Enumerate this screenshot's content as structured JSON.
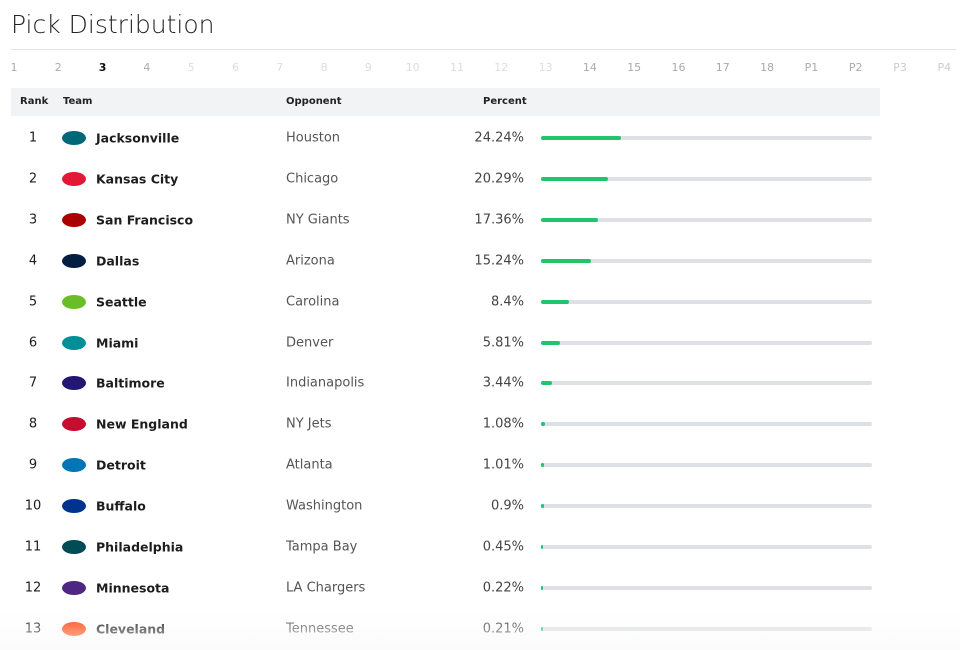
{
  "header": {
    "title": "Pick Distribution"
  },
  "tabs": [
    {
      "label": "1"
    },
    {
      "label": "2"
    },
    {
      "label": "3",
      "active": true
    },
    {
      "label": "4"
    },
    {
      "label": "5"
    },
    {
      "label": "6"
    },
    {
      "label": "7"
    },
    {
      "label": "8"
    },
    {
      "label": "9"
    },
    {
      "label": "10"
    },
    {
      "label": "11"
    },
    {
      "label": "12"
    },
    {
      "label": "13"
    },
    {
      "label": "14"
    },
    {
      "label": "15"
    },
    {
      "label": "16"
    },
    {
      "label": "17"
    },
    {
      "label": "18"
    },
    {
      "label": "P1"
    },
    {
      "label": "P2"
    },
    {
      "label": "P3"
    },
    {
      "label": "P4"
    }
  ],
  "table": {
    "columns": [
      "Rank",
      "Team",
      "Opponent",
      "Percent"
    ],
    "rows": [
      {
        "rank": 1,
        "team": "Jacksonville",
        "opponent": "Houston",
        "percent": 24.24,
        "percent_label": "24.24%"
      },
      {
        "rank": 2,
        "team": "Kansas City",
        "opponent": "Chicago",
        "percent": 20.29,
        "percent_label": "20.29%"
      },
      {
        "rank": 3,
        "team": "San Francisco",
        "opponent": "NY Giants",
        "percent": 17.36,
        "percent_label": "17.36%"
      },
      {
        "rank": 4,
        "team": "Dallas",
        "opponent": "Arizona",
        "percent": 15.24,
        "percent_label": "15.24%"
      },
      {
        "rank": 5,
        "team": "Seattle",
        "opponent": "Carolina",
        "percent": 8.4,
        "percent_label": "8.4%"
      },
      {
        "rank": 6,
        "team": "Miami",
        "opponent": "Denver",
        "percent": 5.81,
        "percent_label": "5.81%"
      },
      {
        "rank": 7,
        "team": "Baltimore",
        "opponent": "Indianapolis",
        "percent": 3.44,
        "percent_label": "3.44%"
      },
      {
        "rank": 8,
        "team": "New England",
        "opponent": "NY Jets",
        "percent": 1.08,
        "percent_label": "1.08%"
      },
      {
        "rank": 9,
        "team": "Detroit",
        "opponent": "Atlanta",
        "percent": 1.01,
        "percent_label": "1.01%"
      },
      {
        "rank": 10,
        "team": "Buffalo",
        "opponent": "Washington",
        "percent": 0.9,
        "percent_label": "0.9%"
      },
      {
        "rank": 11,
        "team": "Philadelphia",
        "opponent": "Tampa Bay",
        "percent": 0.45,
        "percent_label": "0.45%"
      },
      {
        "rank": 12,
        "team": "Minnesota",
        "opponent": "LA Chargers",
        "percent": 0.22,
        "percent_label": "0.22%"
      },
      {
        "rank": 13,
        "team": "Cleveland",
        "opponent": "Tennessee",
        "percent": 0.21,
        "percent_label": "0.21%"
      }
    ]
  }
}
